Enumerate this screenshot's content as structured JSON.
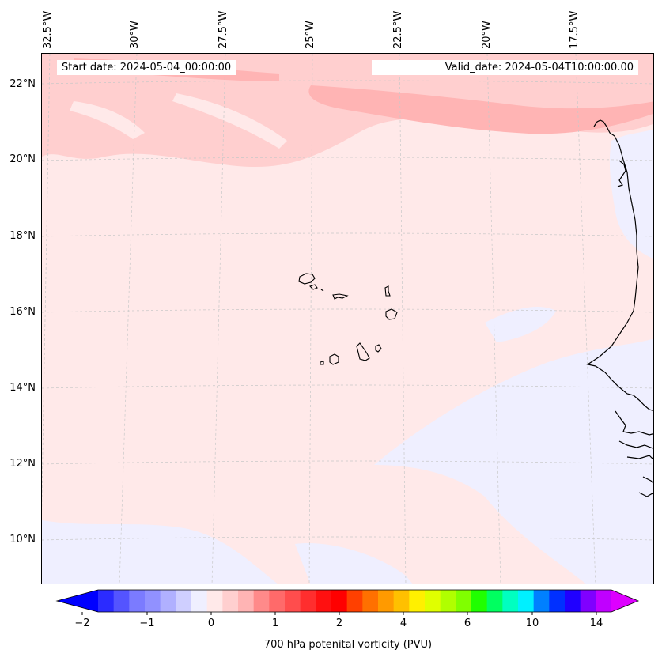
{
  "header": {
    "start_date": "Start date: 2024-05-04_00:00:00",
    "valid_date": "Valid_date: 2024-05-04T10:00:00.00"
  },
  "map": {
    "latitude_labels": [
      "22°N",
      "20°N",
      "18°N",
      "16°N",
      "14°N",
      "12°N",
      "10°N"
    ],
    "longitude_labels": [
      "32.5°W",
      "30°W",
      "27.5°W",
      "25°W",
      "22.5°W",
      "20°W",
      "17.5°W"
    ],
    "field_colors": {
      "background": "#ffe9e9",
      "pink_band": "#ffcfcf",
      "deep_pink": "#ffb4b4",
      "negative_tint": "#efefff",
      "coastline": "#000000",
      "gridline": "#bdbdbd"
    }
  },
  "colorbar": {
    "title": "700 hPa potenital vorticity (PVU)",
    "tick_labels": [
      "−2",
      "−1",
      "0",
      "1",
      "2",
      "4",
      "6",
      "10",
      "14"
    ],
    "colors": [
      "#2b2bff",
      "#5454ff",
      "#7b7bff",
      "#9191ff",
      "#b0b0ff",
      "#cfcfff",
      "#efefff",
      "#ffe9e9",
      "#ffcfcf",
      "#ffb4b4",
      "#ff8a8a",
      "#ff6a6a",
      "#ff4d4d",
      "#ff2e2e",
      "#ff1010",
      "#ff0000",
      "#ff4000",
      "#ff7000",
      "#ff9a00",
      "#ffc000",
      "#fff000",
      "#e0ff00",
      "#b0ff00",
      "#80ff00",
      "#20ff00",
      "#00ff60",
      "#00ffc0",
      "#00f0ff",
      "#0080ff",
      "#0030ff",
      "#2000ff",
      "#8000ff",
      "#c000ff"
    ],
    "min_extend_color": "#0000ff",
    "max_extend_color": "#dd00ff"
  }
}
